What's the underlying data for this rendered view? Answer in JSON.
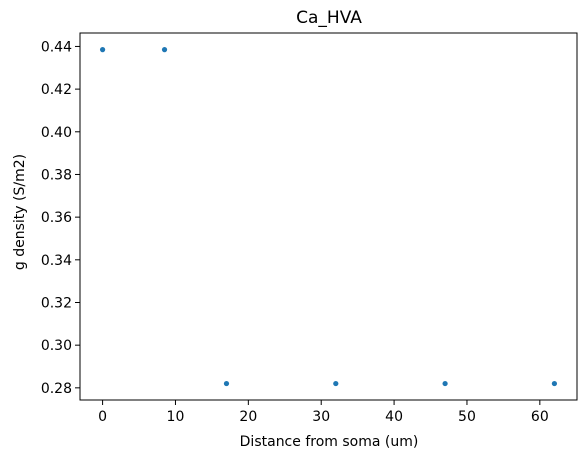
{
  "chart_data": {
    "type": "scatter",
    "title": "Ca_HVA",
    "xlabel": "Distance from soma (um)",
    "ylabel": "g density (S/m2)",
    "x_ticks": [
      0,
      10,
      20,
      30,
      40,
      50,
      60
    ],
    "y_ticks": [
      0.28,
      0.3,
      0.32,
      0.34,
      0.36,
      0.38,
      0.4,
      0.42,
      0.44
    ],
    "xlim": [
      -3.1,
      65.1
    ],
    "ylim": [
      0.2743,
      0.4463
    ],
    "grid": false,
    "series": [
      {
        "color": "#1f77b4",
        "points": [
          {
            "x": 0,
            "y": 0.4385
          },
          {
            "x": 8.5,
            "y": 0.4385
          },
          {
            "x": 17,
            "y": 0.282
          },
          {
            "x": 32,
            "y": 0.282
          },
          {
            "x": 47,
            "y": 0.282
          },
          {
            "x": 62,
            "y": 0.282
          }
        ]
      }
    ]
  }
}
